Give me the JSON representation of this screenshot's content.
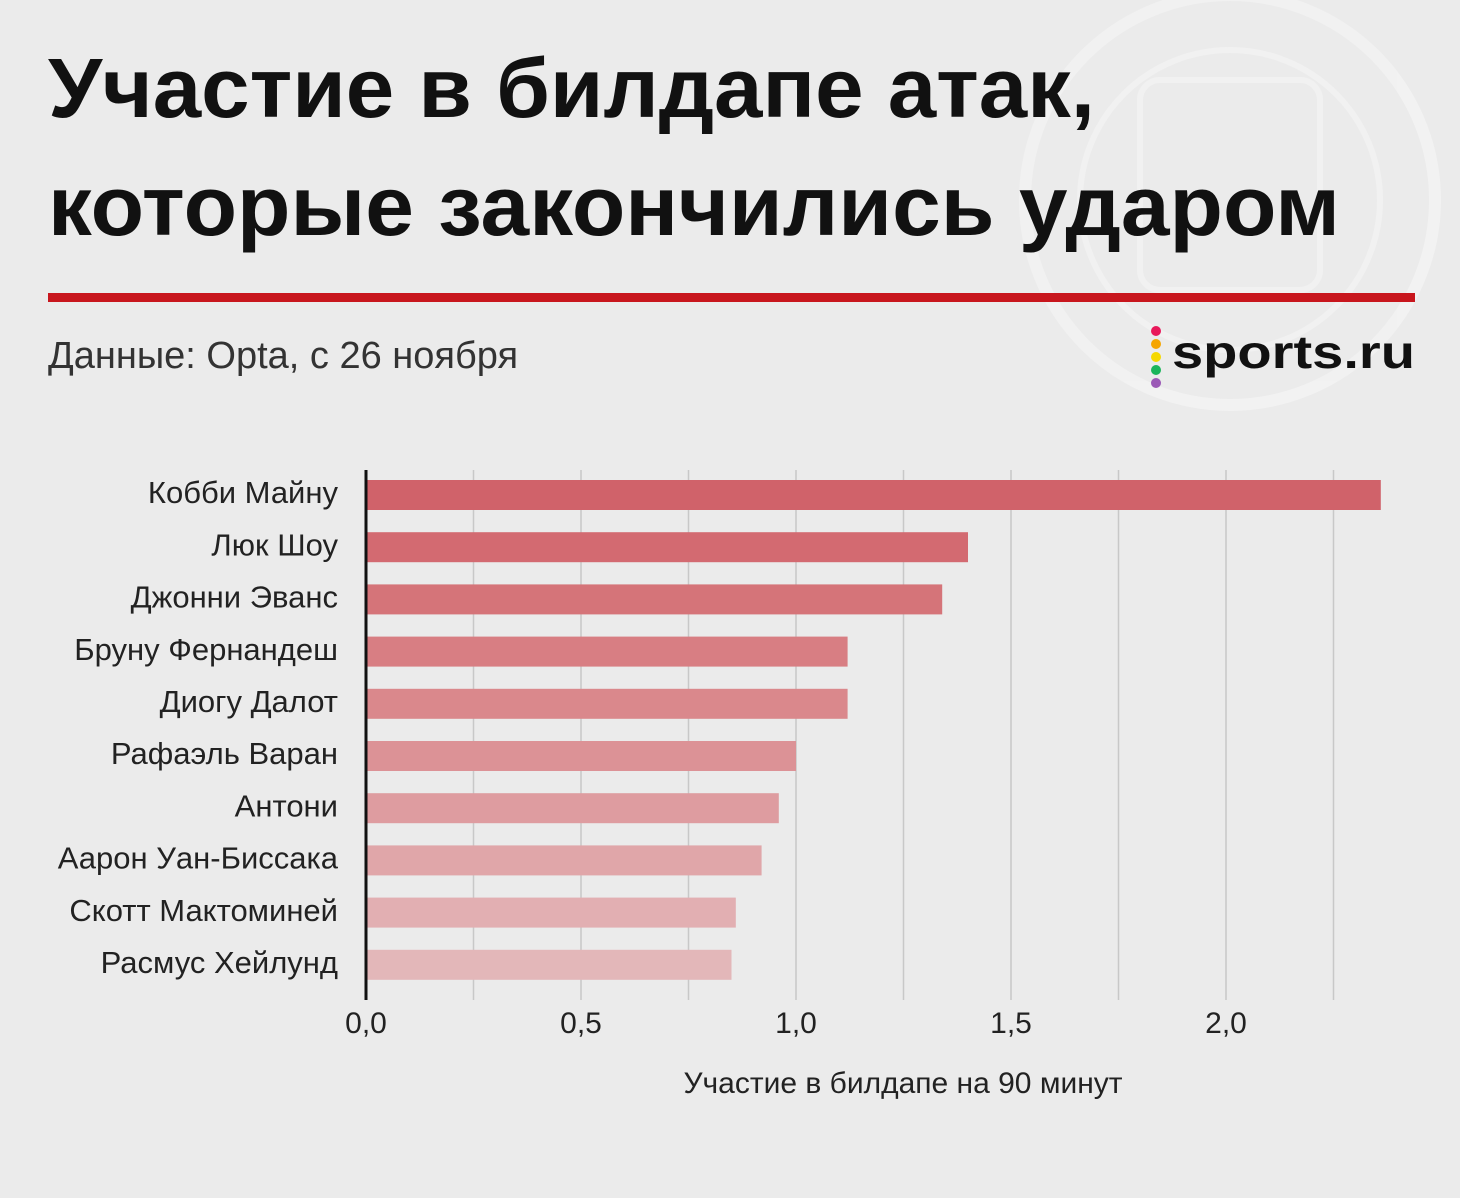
{
  "chart_data": {
    "type": "barh",
    "title": [
      "Участие в билдапе атак,",
      "которые закончились ударом"
    ],
    "subtitle": "Данные: Opta, с 26 ноября",
    "brand": "sports.ru",
    "xlabel": "Участие в билдапе на 90 минут",
    "categories": [
      "Кобби Майну",
      "Люк Шоу",
      "Джонни Эванс",
      "Бруну Фернандеш",
      "Диогу Далот",
      "Рафаэль Варан",
      "Антони",
      "Аарон Уан-Биссака",
      "Скотт Мактоминей",
      "Расмус Хейлунд"
    ],
    "values": [
      2.36,
      1.4,
      1.34,
      1.12,
      1.12,
      1.0,
      0.96,
      0.92,
      0.86,
      0.85
    ],
    "colors": [
      "#d0626a",
      "#d36a71",
      "#d57479",
      "#d87e83",
      "#da888c",
      "#dc9296",
      "#de9ca0",
      "#e0a6a9",
      "#e2afb2",
      "#e3b7b9"
    ],
    "xlim": [
      0,
      2.4
    ],
    "xticks": [
      {
        "value": 0,
        "label": "0,0"
      },
      {
        "value": 0.5,
        "label": "0,5"
      },
      {
        "value": 1.0,
        "label": "1,0"
      },
      {
        "value": 1.5,
        "label": "1,5"
      },
      {
        "value": 2.0,
        "label": "2,0"
      }
    ],
    "xminor_ticks": [
      0.25,
      0.75,
      1.25,
      1.75,
      2.25
    ],
    "grid": true
  }
}
